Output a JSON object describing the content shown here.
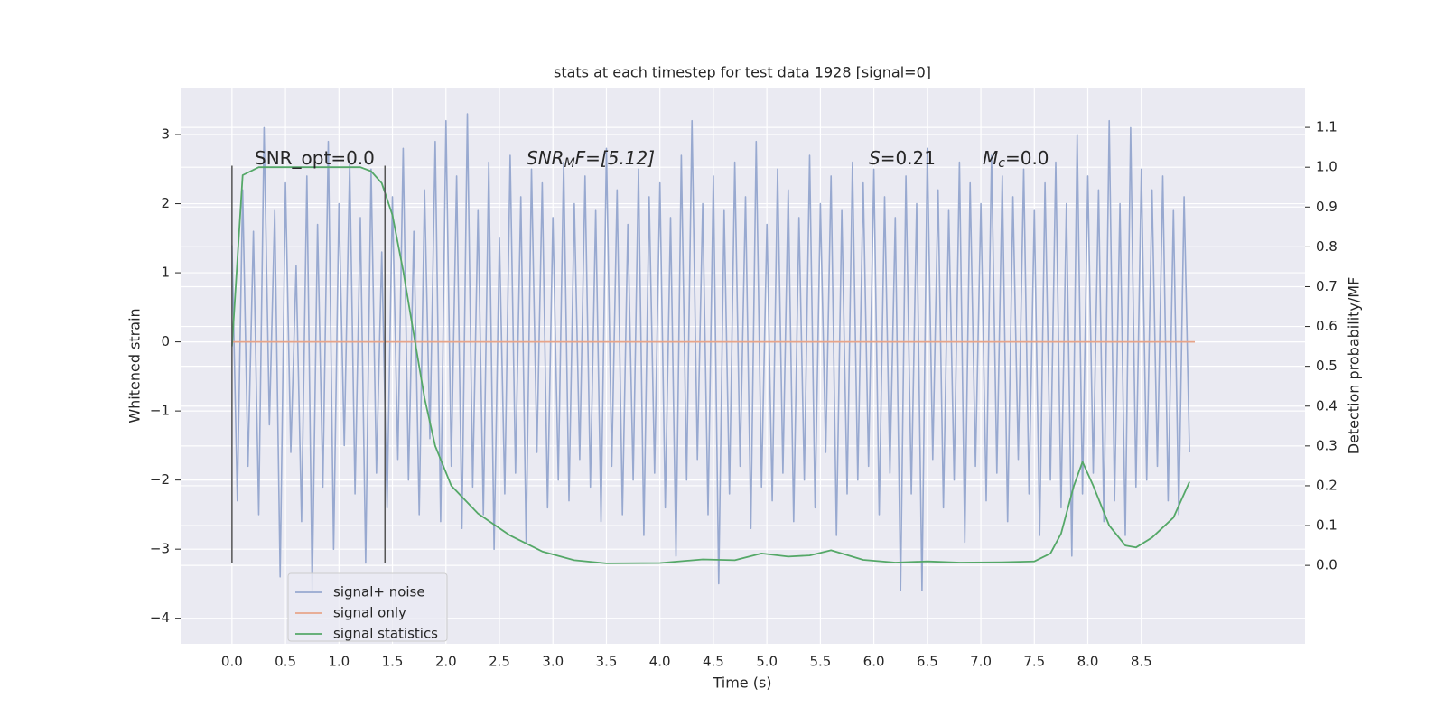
{
  "chart_data": {
    "type": "line",
    "title": "stats at each timestep for test data 1928 [signal=0]",
    "xlabel": "Time (s)",
    "ylabel": "Whitened strain",
    "y2label": "Detection probability/MF",
    "xlim": [
      -0.48,
      10.03
    ],
    "ylim": [
      -4.37,
      3.68
    ],
    "y2lim": [
      -0.197,
      1.2
    ],
    "xticks": [
      {
        "value": 0,
        "label": "0.0"
      },
      0.5,
      {
        "value": 1,
        "label": "1.0"
      },
      1.5,
      {
        "value": 2,
        "label": "2.0"
      },
      2.5,
      {
        "value": 3,
        "label": "3.0"
      },
      3.5,
      {
        "value": 4,
        "label": "4.0"
      },
      4.5,
      {
        "value": 5,
        "label": "5.0"
      },
      5.5,
      {
        "value": 6,
        "label": "6.0"
      },
      6.5,
      {
        "value": 7,
        "label": "7.0"
      },
      7.5,
      {
        "value": 8,
        "label": "8.0"
      },
      8.5
    ],
    "yticks": [
      {
        "value": -4,
        "label": "−4"
      },
      {
        "value": -3,
        "label": "−3"
      },
      {
        "value": -2,
        "label": "−2"
      },
      {
        "value": -1,
        "label": "−1"
      },
      0,
      1,
      2,
      3
    ],
    "y2ticks": [
      {
        "value": 0,
        "label": "0.0"
      },
      0.1,
      0.2,
      0.3,
      0.4,
      0.5,
      0.6,
      0.7,
      0.8,
      0.9,
      {
        "value": 1,
        "label": "1.0"
      },
      1.1
    ],
    "grid": true,
    "legend": "lower left",
    "series": [
      {
        "name": "signal+ noise",
        "color": "#98a9d0",
        "x": [
          0,
          0.05,
          0.1,
          0.15,
          0.2,
          0.25,
          0.3,
          0.35,
          0.4,
          0.45,
          0.5,
          0.55,
          0.6,
          0.65,
          0.7,
          0.75,
          0.8,
          0.85,
          0.9,
          0.95,
          1,
          1.05,
          1.1,
          1.15,
          1.2,
          1.25,
          1.3,
          1.35,
          1.4,
          1.45,
          1.5,
          1.55,
          1.6,
          1.65,
          1.7,
          1.75,
          1.8,
          1.85,
          1.9,
          1.95,
          2,
          2.05,
          2.1,
          2.15,
          2.2,
          2.25,
          2.3,
          2.35,
          2.4,
          2.45,
          2.5,
          2.55,
          2.6,
          2.65,
          2.7,
          2.75,
          2.8,
          2.85,
          2.9,
          2.95,
          3,
          3.05,
          3.1,
          3.15,
          3.2,
          3.25,
          3.3,
          3.35,
          3.4,
          3.45,
          3.5,
          3.55,
          3.6,
          3.65,
          3.7,
          3.75,
          3.8,
          3.85,
          3.9,
          3.95,
          4,
          4.05,
          4.1,
          4.15,
          4.2,
          4.25,
          4.3,
          4.35,
          4.4,
          4.45,
          4.5,
          4.55,
          4.6,
          4.65,
          4.7,
          4.75,
          4.8,
          4.85,
          4.9,
          4.95,
          5,
          5.05,
          5.1,
          5.15,
          5.2,
          5.25,
          5.3,
          5.35,
          5.4,
          5.45,
          5.5,
          5.55,
          5.6,
          5.65,
          5.7,
          5.75,
          5.8,
          5.85,
          5.9,
          5.95,
          6,
          6.05,
          6.1,
          6.15,
          6.2,
          6.25,
          6.3,
          6.35,
          6.4,
          6.45,
          6.5,
          6.55,
          6.6,
          6.65,
          6.7,
          6.75,
          6.8,
          6.85,
          6.9,
          6.95,
          7,
          7.05,
          7.1,
          7.15,
          7.2,
          7.25,
          7.3,
          7.35,
          7.4,
          7.45,
          7.5,
          7.55,
          7.6,
          7.65,
          7.7,
          7.75,
          7.8,
          7.85,
          7.9,
          7.95,
          8,
          8.05,
          8.1,
          8.15,
          8.2,
          8.25,
          8.3,
          8.35,
          8.4,
          8.45,
          8.5,
          8.55,
          8.6,
          8.65,
          8.7,
          8.75,
          8.8,
          8.85,
          8.9,
          8.95
        ],
        "values": [
          1.4,
          -2.3,
          2.2,
          -1.8,
          1.6,
          -2.5,
          3.1,
          -1.2,
          1.9,
          -3.4,
          2.3,
          -1.6,
          1.1,
          -2.6,
          2.4,
          -3.6,
          1.7,
          -2.1,
          2.9,
          -3.0,
          2.0,
          -1.5,
          2.6,
          -2.2,
          1.8,
          -3.2,
          2.5,
          -1.9,
          1.3,
          -2.4,
          2.1,
          -1.7,
          2.8,
          -2.0,
          1.6,
          -2.5,
          2.2,
          -1.4,
          2.9,
          -2.6,
          3.2,
          -1.8,
          2.4,
          -2.7,
          3.3,
          -2.1,
          1.9,
          -2.5,
          2.6,
          -3.0,
          1.5,
          -2.2,
          2.7,
          -1.9,
          2.1,
          -2.9,
          2.5,
          -1.6,
          2.3,
          -2.4,
          1.8,
          -2.0,
          2.6,
          -2.3,
          2.0,
          -1.7,
          2.4,
          -2.1,
          1.9,
          -2.6,
          2.8,
          -1.8,
          2.2,
          -2.5,
          1.7,
          -2.0,
          2.5,
          -2.8,
          2.1,
          -1.9,
          2.3,
          -2.4,
          1.8,
          -3.1,
          2.7,
          -2.0,
          3.2,
          -1.7,
          2.0,
          -2.5,
          2.4,
          -3.5,
          1.9,
          -2.2,
          2.6,
          -1.8,
          2.1,
          -2.7,
          2.9,
          -2.1,
          1.7,
          -2.3,
          2.5,
          -1.9,
          2.2,
          -2.6,
          1.8,
          -2.0,
          2.7,
          -2.4,
          2.0,
          -1.6,
          2.4,
          -2.8,
          1.9,
          -2.2,
          2.6,
          -2.0,
          2.3,
          -1.8,
          2.5,
          -2.5,
          2.1,
          -1.9,
          1.8,
          -3.6,
          2.4,
          -2.2,
          2.0,
          -3.6,
          2.8,
          -1.7,
          2.2,
          -2.4,
          1.9,
          -2.0,
          2.6,
          -2.9,
          2.3,
          -1.8,
          2.0,
          -2.3,
          2.7,
          -1.9,
          2.4,
          -2.6,
          2.1,
          -1.7,
          2.5,
          -2.2,
          1.9,
          -2.8,
          2.3,
          -2.0,
          2.6,
          -2.4,
          2.0,
          -3.1,
          3.0,
          -2.2,
          2.4,
          -1.9,
          2.2,
          -2.6,
          3.2,
          -2.3,
          2.0,
          -2.8,
          3.1,
          -2.1,
          2.5,
          -2.0,
          2.2,
          -1.8,
          2.4,
          -2.3,
          1.9,
          -2.5,
          2.1,
          -1.6
        ]
      },
      {
        "name": "signal only",
        "color": "#e8a58a",
        "x": [
          0,
          9
        ],
        "values": [
          0,
          0
        ]
      },
      {
        "name": "signal statistics",
        "color": "#55a868",
        "axis": "y2",
        "x": [
          0,
          0.1,
          0.25,
          0.5,
          0.8,
          1.0,
          1.2,
          1.3,
          1.4,
          1.5,
          1.6,
          1.7,
          1.8,
          1.9,
          2.05,
          2.3,
          2.6,
          2.9,
          3.2,
          3.5,
          4.0,
          4.4,
          4.7,
          4.95,
          5.2,
          5.4,
          5.6,
          5.9,
          6.2,
          6.5,
          6.8,
          7.2,
          7.5,
          7.65,
          7.75,
          7.87,
          7.95,
          8.05,
          8.2,
          8.35,
          8.45,
          8.6,
          8.8,
          8.95
        ],
        "values": [
          0.55,
          0.98,
          1.0,
          1.0,
          1.0,
          1.0,
          1.0,
          0.99,
          0.96,
          0.88,
          0.74,
          0.58,
          0.42,
          0.3,
          0.2,
          0.13,
          0.075,
          0.035,
          0.013,
          0.005,
          0.006,
          0.015,
          0.013,
          0.03,
          0.022,
          0.025,
          0.038,
          0.014,
          0.007,
          0.01,
          0.007,
          0.008,
          0.01,
          0.03,
          0.08,
          0.2,
          0.26,
          0.2,
          0.1,
          0.05,
          0.045,
          0.07,
          0.12,
          0.21
        ]
      }
    ],
    "vlines": {
      "x": [
        0,
        1.43
      ],
      "ymin": [
        -3.2,
        -3.2
      ],
      "ymax": [
        2.55,
        2.55
      ],
      "color": "#555555"
    },
    "annotations": [
      {
        "text": "SNR_opt=0.0"
      },
      {
        "text": "SNR",
        "sub": "M",
        "tail": "F=[5.12]"
      },
      {
        "text": "S",
        "tail": "=0.21"
      },
      {
        "text": "M",
        "sub": "c",
        "tail": "=0.0"
      }
    ]
  }
}
